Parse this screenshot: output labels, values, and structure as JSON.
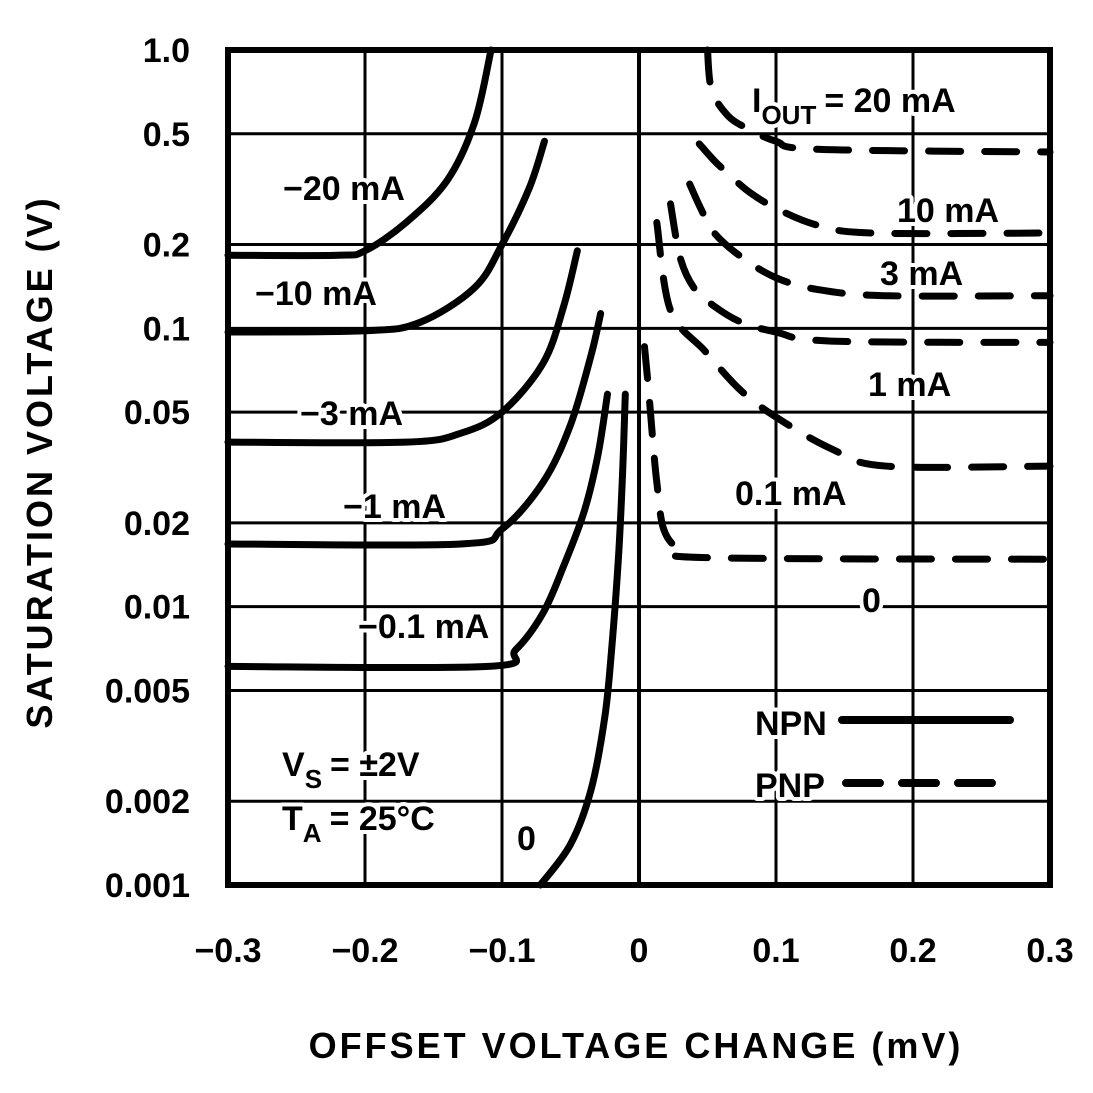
{
  "chart_data": {
    "type": "line",
    "title": "",
    "xlabel": "OFFSET VOLTAGE CHANGE (mV)",
    "ylabel": "SATURATION VOLTAGE (V)",
    "xlim": [
      -0.3,
      0.3
    ],
    "ylim": [
      0.001,
      1.0
    ],
    "yscale": "log",
    "grid": true,
    "x_ticks": [
      "−0.3",
      "−0.2",
      "−0.1",
      "0",
      "0.1",
      "0.2",
      "0.3"
    ],
    "x_tick_values": [
      -0.3,
      -0.2,
      -0.1,
      0,
      0.1,
      0.2,
      0.3
    ],
    "y_ticks": [
      "1.0",
      "0.5",
      "0.2",
      "0.1",
      "0.05",
      "0.02",
      "0.01",
      "0.005",
      "0.002",
      "0.001"
    ],
    "y_tick_values": [
      1.0,
      0.5,
      0.2,
      0.1,
      0.05,
      0.02,
      0.01,
      0.005,
      0.002,
      0.001
    ],
    "legend": {
      "placement": "bottom-right",
      "entries": [
        {
          "label": "NPN",
          "style": "solid"
        },
        {
          "label": "PNP",
          "style": "dashed"
        }
      ]
    },
    "conditions": {
      "vs_main": "V",
      "vs_sub": "S",
      "vs_value": "= ±2V",
      "ta_main": "T",
      "ta_sub": "A",
      "ta_value": "= 25°C"
    },
    "iout_label": {
      "main": "I",
      "sub": "OUT",
      "value": "= 20 mA"
    },
    "series": [
      {
        "name": "−20 mA",
        "type": "NPN",
        "style": "solid",
        "points": [
          [
            -0.3,
            0.183
          ],
          [
            -0.22,
            0.183
          ],
          [
            -0.2,
            0.19
          ],
          [
            -0.17,
            0.24
          ],
          [
            -0.14,
            0.34
          ],
          [
            -0.12,
            0.55
          ],
          [
            -0.108,
            1.0
          ]
        ]
      },
      {
        "name": "−10 mA",
        "type": "NPN",
        "style": "solid",
        "points": [
          [
            -0.3,
            0.097
          ],
          [
            -0.2,
            0.098
          ],
          [
            -0.16,
            0.105
          ],
          [
            -0.12,
            0.14
          ],
          [
            -0.1,
            0.2
          ],
          [
            -0.08,
            0.32
          ],
          [
            -0.069,
            0.47
          ]
        ]
      },
      {
        "name": "−3 mA",
        "type": "NPN",
        "style": "solid",
        "points": [
          [
            -0.3,
            0.039
          ],
          [
            -0.17,
            0.039
          ],
          [
            -0.13,
            0.042
          ],
          [
            -0.1,
            0.05
          ],
          [
            -0.07,
            0.075
          ],
          [
            -0.055,
            0.12
          ],
          [
            -0.045,
            0.19
          ]
        ]
      },
      {
        "name": "−1 mA",
        "type": "NPN",
        "style": "solid",
        "points": [
          [
            -0.3,
            0.0168
          ],
          [
            -0.13,
            0.0168
          ],
          [
            -0.1,
            0.019
          ],
          [
            -0.07,
            0.028
          ],
          [
            -0.05,
            0.045
          ],
          [
            -0.035,
            0.08
          ],
          [
            -0.028,
            0.113
          ]
        ]
      },
      {
        "name": "−0.1 mA",
        "type": "NPN",
        "style": "solid",
        "points": [
          [
            -0.3,
            0.0061
          ],
          [
            -0.11,
            0.0061
          ],
          [
            -0.09,
            0.007
          ],
          [
            -0.07,
            0.0095
          ],
          [
            -0.055,
            0.014
          ],
          [
            -0.04,
            0.022
          ],
          [
            -0.03,
            0.035
          ],
          [
            -0.023,
            0.058
          ]
        ]
      },
      {
        "name": "0",
        "type": "NPN",
        "style": "solid",
        "points": [
          [
            -0.072,
            0.001
          ],
          [
            -0.05,
            0.0014
          ],
          [
            -0.035,
            0.0022
          ],
          [
            -0.025,
            0.004
          ],
          [
            -0.02,
            0.007
          ],
          [
            -0.015,
            0.015
          ],
          [
            -0.012,
            0.03
          ],
          [
            -0.01,
            0.058
          ]
        ]
      },
      {
        "name": "20 mA",
        "type": "PNP",
        "style": "dashed",
        "points": [
          [
            0.05,
            1.0
          ],
          [
            0.053,
            0.72
          ],
          [
            0.065,
            0.58
          ],
          [
            0.08,
            0.52
          ],
          [
            0.1,
            0.47
          ],
          [
            0.13,
            0.44
          ],
          [
            0.3,
            0.43
          ]
        ]
      },
      {
        "name": "10 mA",
        "type": "PNP",
        "style": "dashed",
        "points": [
          [
            0.044,
            0.46
          ],
          [
            0.055,
            0.4
          ],
          [
            0.065,
            0.36
          ],
          [
            0.08,
            0.31
          ],
          [
            0.1,
            0.27
          ],
          [
            0.13,
            0.235
          ],
          [
            0.17,
            0.22
          ],
          [
            0.3,
            0.22
          ]
        ]
      },
      {
        "name": "3 mA",
        "type": "PNP",
        "style": "dashed",
        "points": [
          [
            0.037,
            0.33
          ],
          [
            0.045,
            0.27
          ],
          [
            0.055,
            0.22
          ],
          [
            0.075,
            0.18
          ],
          [
            0.1,
            0.152
          ],
          [
            0.13,
            0.138
          ],
          [
            0.18,
            0.131
          ],
          [
            0.3,
            0.131
          ]
        ]
      },
      {
        "name": "1 mA",
        "type": "PNP",
        "style": "dashed",
        "points": [
          [
            0.023,
            0.28
          ],
          [
            0.03,
            0.18
          ],
          [
            0.04,
            0.14
          ],
          [
            0.055,
            0.12
          ],
          [
            0.075,
            0.105
          ],
          [
            0.1,
            0.097
          ],
          [
            0.14,
            0.09
          ],
          [
            0.3,
            0.089
          ]
        ]
      },
      {
        "name": "0.1 mA",
        "type": "PNP",
        "style": "dashed",
        "points": [
          [
            0.013,
            0.24
          ],
          [
            0.023,
            0.116
          ],
          [
            0.048,
            0.083
          ],
          [
            0.074,
            0.06
          ],
          [
            0.1,
            0.048
          ],
          [
            0.14,
            0.037
          ],
          [
            0.18,
            0.032
          ],
          [
            0.3,
            0.032
          ]
        ]
      },
      {
        "name": "0",
        "type": "PNP",
        "style": "dashed",
        "points": [
          [
            0.004,
            0.086
          ],
          [
            0.007,
            0.06
          ],
          [
            0.01,
            0.04
          ],
          [
            0.013,
            0.028
          ],
          [
            0.018,
            0.019
          ],
          [
            0.03,
            0.016
          ],
          [
            0.05,
            0.015
          ],
          [
            0.3,
            0.0148
          ]
        ]
      }
    ]
  }
}
